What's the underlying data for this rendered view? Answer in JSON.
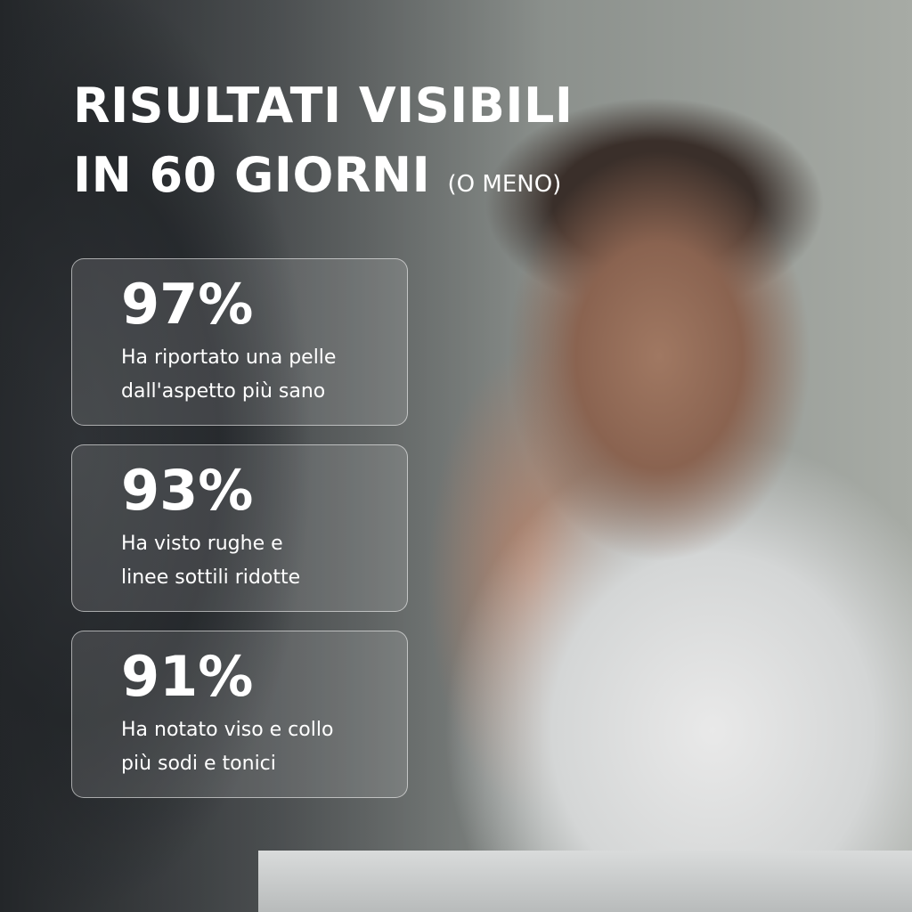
{
  "headline": {
    "line1": "RISULTATI VISIBILI",
    "line2": "IN 60 GIORNI",
    "suffix": "(O MENO)"
  },
  "stats": [
    {
      "percent": "97%",
      "line1": "Ha riportato una pelle",
      "line2": "dall'aspetto più sano"
    },
    {
      "percent": "93%",
      "line1": "Ha visto rughe e",
      "line2": "linee sottili ridotte"
    },
    {
      "percent": "91%",
      "line1": "Ha notato viso e collo",
      "line2": "più sodi e tonici"
    }
  ]
}
